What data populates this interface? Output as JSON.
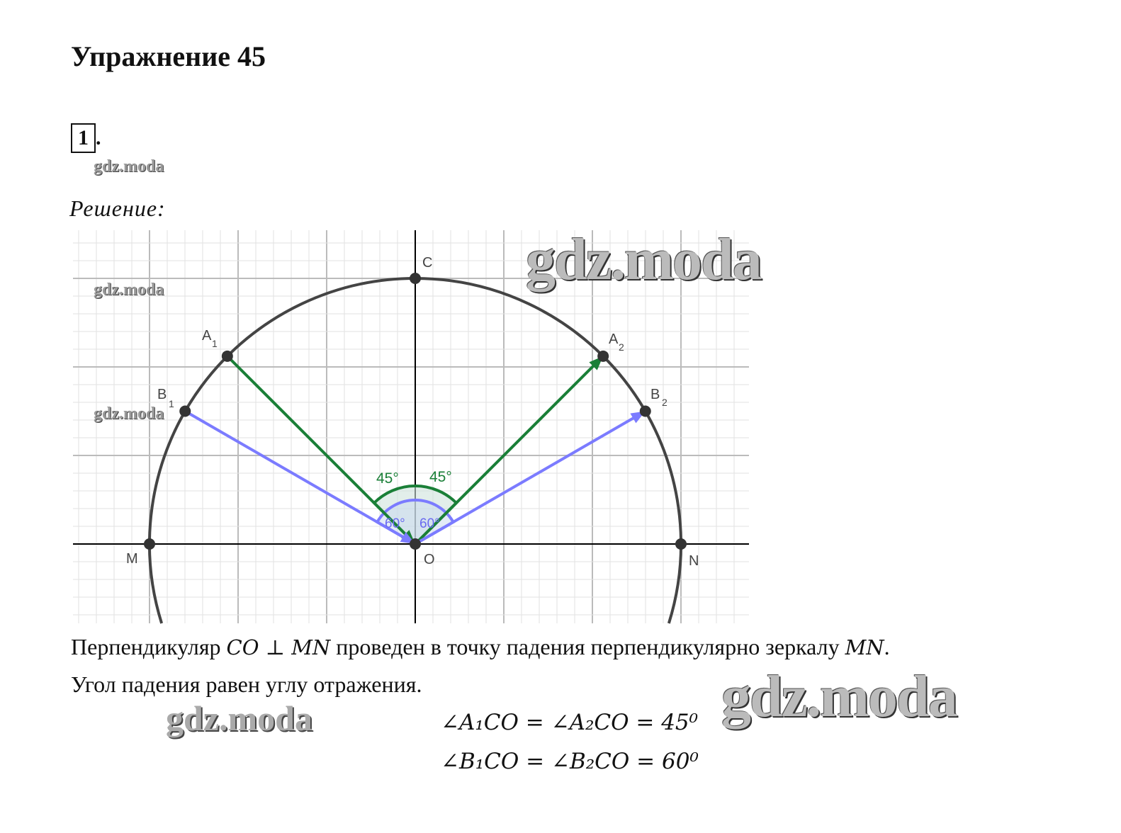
{
  "title": "Упражнение 45",
  "task_number": "1",
  "solution_label": "Решение:",
  "watermark": "gdz.moda",
  "diagram": {
    "points": {
      "C": "C",
      "O": "O",
      "M": "M",
      "N": "N",
      "A1": "A",
      "A1_sub": "1",
      "A2": "A",
      "A2_sub": "2",
      "B1": "B",
      "B1_sub": "1",
      "B2": "B",
      "B2_sub": "2"
    },
    "angle_labels": {
      "a_left": "45°",
      "a_right": "45°",
      "b_left": "60°",
      "b_right": "60°"
    },
    "incidence_angle_a_deg": 45,
    "incidence_angle_b_deg": 60,
    "colors": {
      "circle": "#444444",
      "ray_a": "#1a7f37",
      "ray_b": "#7b7bff",
      "grid": "#d0d0d0",
      "axis": "#000000"
    }
  },
  "text": {
    "line1_a": "Перпендикуляр ",
    "line1_math1": "CO ⊥ MN",
    "line1_b": " проведен в точку падения перпендикулярно зеркалу ",
    "line1_math2": "MN",
    "line1_c": ".",
    "line2": "Угол падения равен углу отражения."
  },
  "equations": {
    "eq1": "∠A₁CO = ∠A₂CO = 45⁰",
    "eq2": "∠B₁CO = ∠B₂CO = 60⁰"
  }
}
